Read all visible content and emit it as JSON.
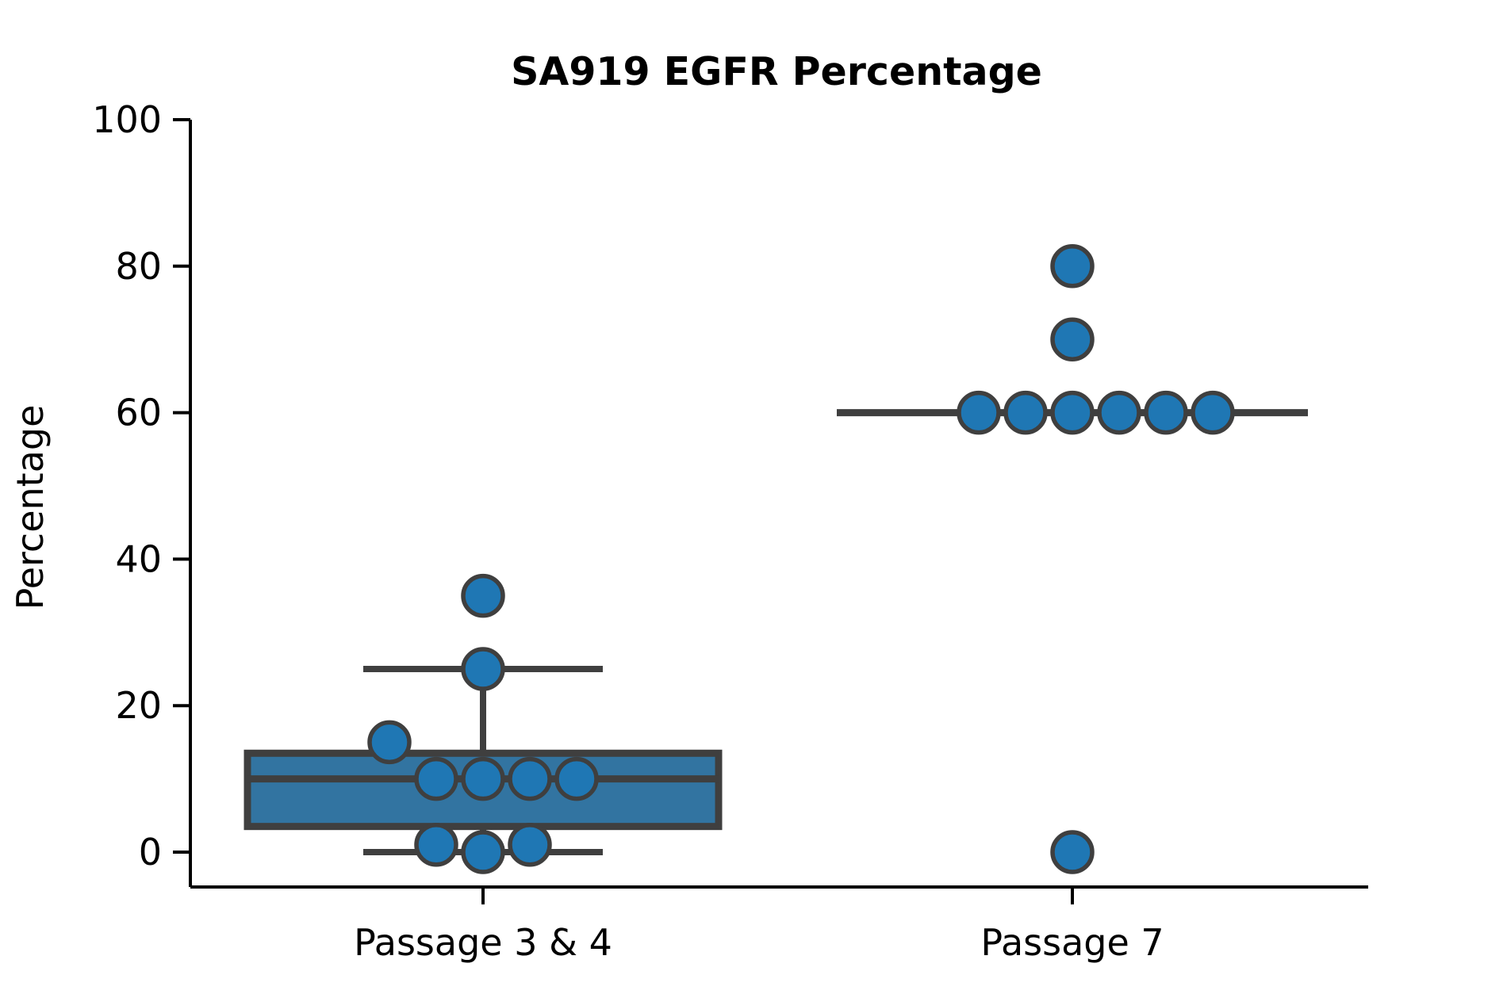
{
  "chart_data": {
    "type": "box",
    "title": "SA919 EGFR Percentage",
    "xlabel": "",
    "ylabel": "Percentage",
    "ylim": [
      -5,
      100
    ],
    "yticks": [
      0,
      20,
      40,
      60,
      80,
      100
    ],
    "categories": [
      "Passage 3 & 4",
      "Passage 7"
    ],
    "grid": false,
    "box_color": "#3274a1",
    "point_color": "#1f77b4",
    "edge_color": "#3f3f3f",
    "boxes": [
      {
        "category": "Passage 3 & 4",
        "q1": 3.5,
        "median": 10,
        "q3": 13.5,
        "whisker_low": 0,
        "whisker_high": 25
      },
      {
        "category": "Passage 7",
        "q1": 60,
        "median": 60,
        "q3": 60,
        "whisker_low": 60,
        "whisker_high": 60
      }
    ],
    "points": [
      {
        "category": "Passage 3 & 4",
        "values": [
          0,
          1,
          1,
          10,
          10,
          10,
          10,
          15,
          25,
          35
        ]
      },
      {
        "category": "Passage 7",
        "values": [
          0,
          60,
          60,
          60,
          60,
          60,
          60,
          70,
          80
        ]
      }
    ]
  }
}
